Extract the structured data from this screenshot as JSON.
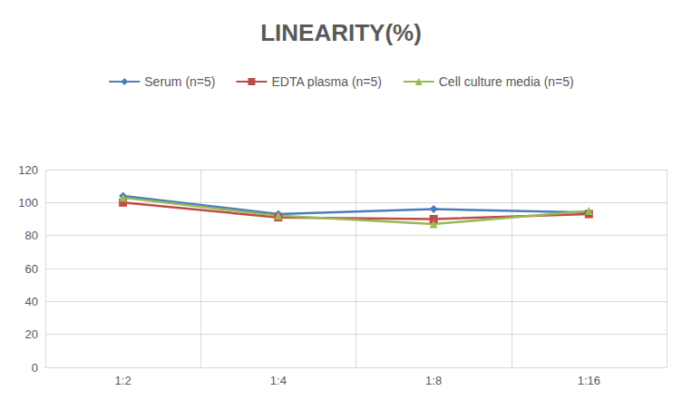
{
  "chart_data": {
    "type": "line",
    "title": "LINEARITY(%)",
    "categories": [
      "1:2",
      "1:4",
      "1:8",
      "1:16"
    ],
    "series": [
      {
        "name": "Serum (n=5)",
        "color": "#4a7ebb",
        "marker": "diamond",
        "values": [
          104,
          93,
          96,
          94
        ]
      },
      {
        "name": "EDTA plasma (n=5)",
        "color": "#be4b48",
        "marker": "square",
        "values": [
          100,
          91,
          90,
          93
        ]
      },
      {
        "name": "Cell culture media (n=5)",
        "color": "#98b954",
        "marker": "triangle",
        "values": [
          103,
          92,
          87,
          95
        ]
      }
    ],
    "ylim": [
      0,
      120
    ],
    "yticks": [
      0,
      20,
      40,
      60,
      80,
      100,
      120
    ],
    "grid": true,
    "legend": "top"
  }
}
